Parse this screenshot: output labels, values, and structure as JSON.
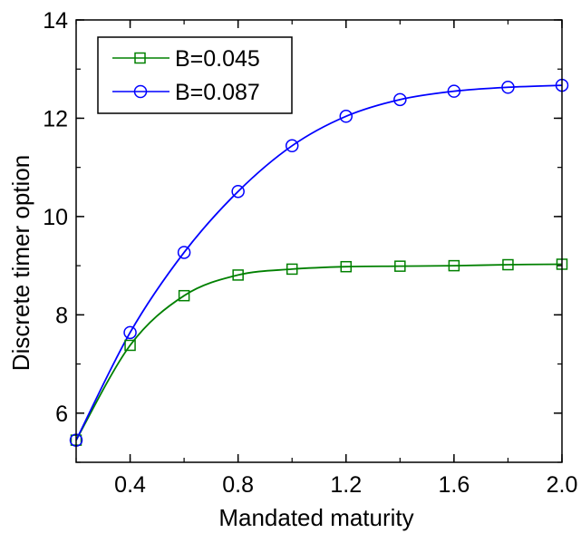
{
  "chart_data": {
    "type": "line",
    "xlabel": "Mandated maturity",
    "ylabel": "Discrete timer option",
    "xlim": [
      0.2,
      2.0
    ],
    "ylim": [
      5.0,
      14.0
    ],
    "xticks": [
      0.4,
      0.8,
      1.2,
      1.6,
      2.0
    ],
    "xtick_labels": [
      "0.4",
      "0.8",
      "1.2",
      "1.6",
      "2.0"
    ],
    "yticks": [
      6,
      8,
      10,
      12,
      14
    ],
    "ytick_labels": [
      "6",
      "8",
      "10",
      "12",
      "14"
    ],
    "grid": false,
    "legend_position": "top-left",
    "series": [
      {
        "name": "B=0.045",
        "color": "#008000",
        "marker": "square",
        "x": [
          0.2,
          0.4,
          0.6,
          0.8,
          1.0,
          1.2,
          1.4,
          1.6,
          1.8,
          2.0
        ],
        "y": [
          5.45,
          7.38,
          8.39,
          8.81,
          8.93,
          8.98,
          8.99,
          9.0,
          9.02,
          9.03
        ]
      },
      {
        "name": "B=0.087",
        "color": "#0000ff",
        "marker": "circle",
        "x": [
          0.2,
          0.4,
          0.6,
          0.8,
          1.0,
          1.2,
          1.4,
          1.6,
          1.8,
          2.0
        ],
        "y": [
          5.45,
          7.64,
          9.27,
          10.51,
          11.44,
          12.04,
          12.38,
          12.55,
          12.63,
          12.67
        ]
      }
    ]
  }
}
